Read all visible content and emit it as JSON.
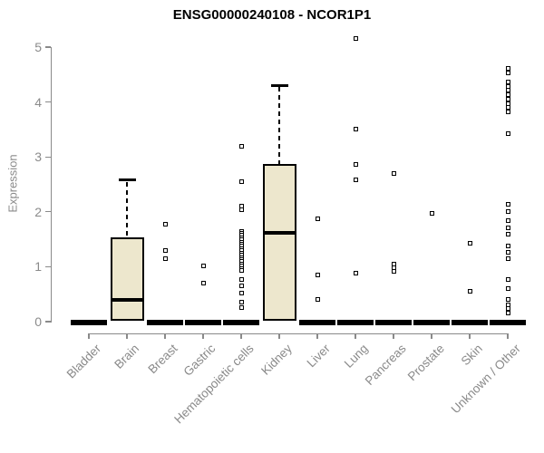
{
  "chart_data": {
    "type": "boxplot",
    "title": "ENSG00000240108 - NCOR1P1",
    "ylabel": "Expression",
    "xlabel": "",
    "ylim": [
      0,
      5
    ],
    "yticks": [
      0,
      1,
      2,
      3,
      4,
      5
    ],
    "grid": false,
    "legend": false,
    "categories": [
      "Bladder",
      "Brain",
      "Breast",
      "Gastric",
      "Hematopoietic cells",
      "Kidney",
      "Liver",
      "Lung",
      "Pancreas",
      "Prostate",
      "Skin",
      "Unknown / Other"
    ],
    "series": [
      {
        "category": "Bladder",
        "q1": 0,
        "median": 0,
        "q3": 0,
        "whisker_low": 0,
        "whisker_high": 0,
        "outliers": []
      },
      {
        "category": "Brain",
        "q1": 0.02,
        "median": 0.4,
        "q3": 1.54,
        "whisker_low": 0.02,
        "whisker_high": 2.58,
        "outliers": []
      },
      {
        "category": "Breast",
        "q1": 0,
        "median": 0,
        "q3": 0,
        "whisker_low": 0,
        "whisker_high": 0,
        "outliers": [
          1.78,
          1.3,
          1.15
        ]
      },
      {
        "category": "Gastric",
        "q1": 0,
        "median": 0,
        "q3": 0,
        "whisker_low": 0,
        "whisker_high": 0,
        "outliers": [
          1.02,
          0.7
        ]
      },
      {
        "category": "Hematopoietic cells",
        "q1": 0,
        "median": 0,
        "q3": 0,
        "whisker_low": 0,
        "whisker_high": 0,
        "outliers": [
          3.2,
          2.55,
          2.11,
          2.03,
          1.65,
          1.61,
          1.57,
          1.53,
          1.49,
          1.45,
          1.41,
          1.37,
          1.33,
          1.29,
          1.25,
          1.21,
          1.17,
          1.13,
          1.09,
          1.05,
          1.01,
          0.97,
          0.93,
          0.77,
          0.66,
          0.52,
          0.36,
          0.25
        ]
      },
      {
        "category": "Kidney",
        "q1": 0.01,
        "median": 1.62,
        "q3": 2.87,
        "whisker_low": 0.01,
        "whisker_high": 4.3,
        "outliers": []
      },
      {
        "category": "Liver",
        "q1": 0,
        "median": 0,
        "q3": 0,
        "whisker_low": 0,
        "whisker_high": 0,
        "outliers": [
          1.88,
          0.85,
          0.41
        ]
      },
      {
        "category": "Lung",
        "q1": 0,
        "median": 0,
        "q3": 0,
        "whisker_low": 0,
        "whisker_high": 0,
        "outliers": [
          5.15,
          3.51,
          2.87,
          2.59,
          0.88
        ]
      },
      {
        "category": "Pancreas",
        "q1": 0,
        "median": 0,
        "q3": 0,
        "whisker_low": 0,
        "whisker_high": 0,
        "outliers": [
          2.69,
          1.05,
          0.98,
          0.91
        ]
      },
      {
        "category": "Prostate",
        "q1": 0,
        "median": 0,
        "q3": 0,
        "whisker_low": 0,
        "whisker_high": 0,
        "outliers": [
          1.97
        ]
      },
      {
        "category": "Skin",
        "q1": 0,
        "median": 0,
        "q3": 0,
        "whisker_low": 0,
        "whisker_high": 0,
        "outliers": [
          1.43,
          0.55
        ]
      },
      {
        "category": "Unknown / Other",
        "q1": 0,
        "median": 0,
        "q3": 0,
        "whisker_low": 0,
        "whisker_high": 0,
        "outliers": [
          4.62,
          4.53,
          4.37,
          4.29,
          4.21,
          4.13,
          4.05,
          3.97,
          3.9,
          3.82,
          3.43,
          2.14,
          2.0,
          1.84,
          1.7,
          1.6,
          1.37,
          1.26,
          1.15,
          0.77,
          0.61,
          0.41,
          0.31,
          0.24,
          0.16
        ]
      }
    ],
    "colors": {
      "box_fill": "#EDE7CD",
      "box_border": "#000000",
      "median": "#000000",
      "whisker": "#000000",
      "outlier_border": "#000000",
      "outlier_fill": "#FFFFFF",
      "axis": "#8A8A8A",
      "title": "#000000",
      "background": "#FFFFFF"
    }
  }
}
